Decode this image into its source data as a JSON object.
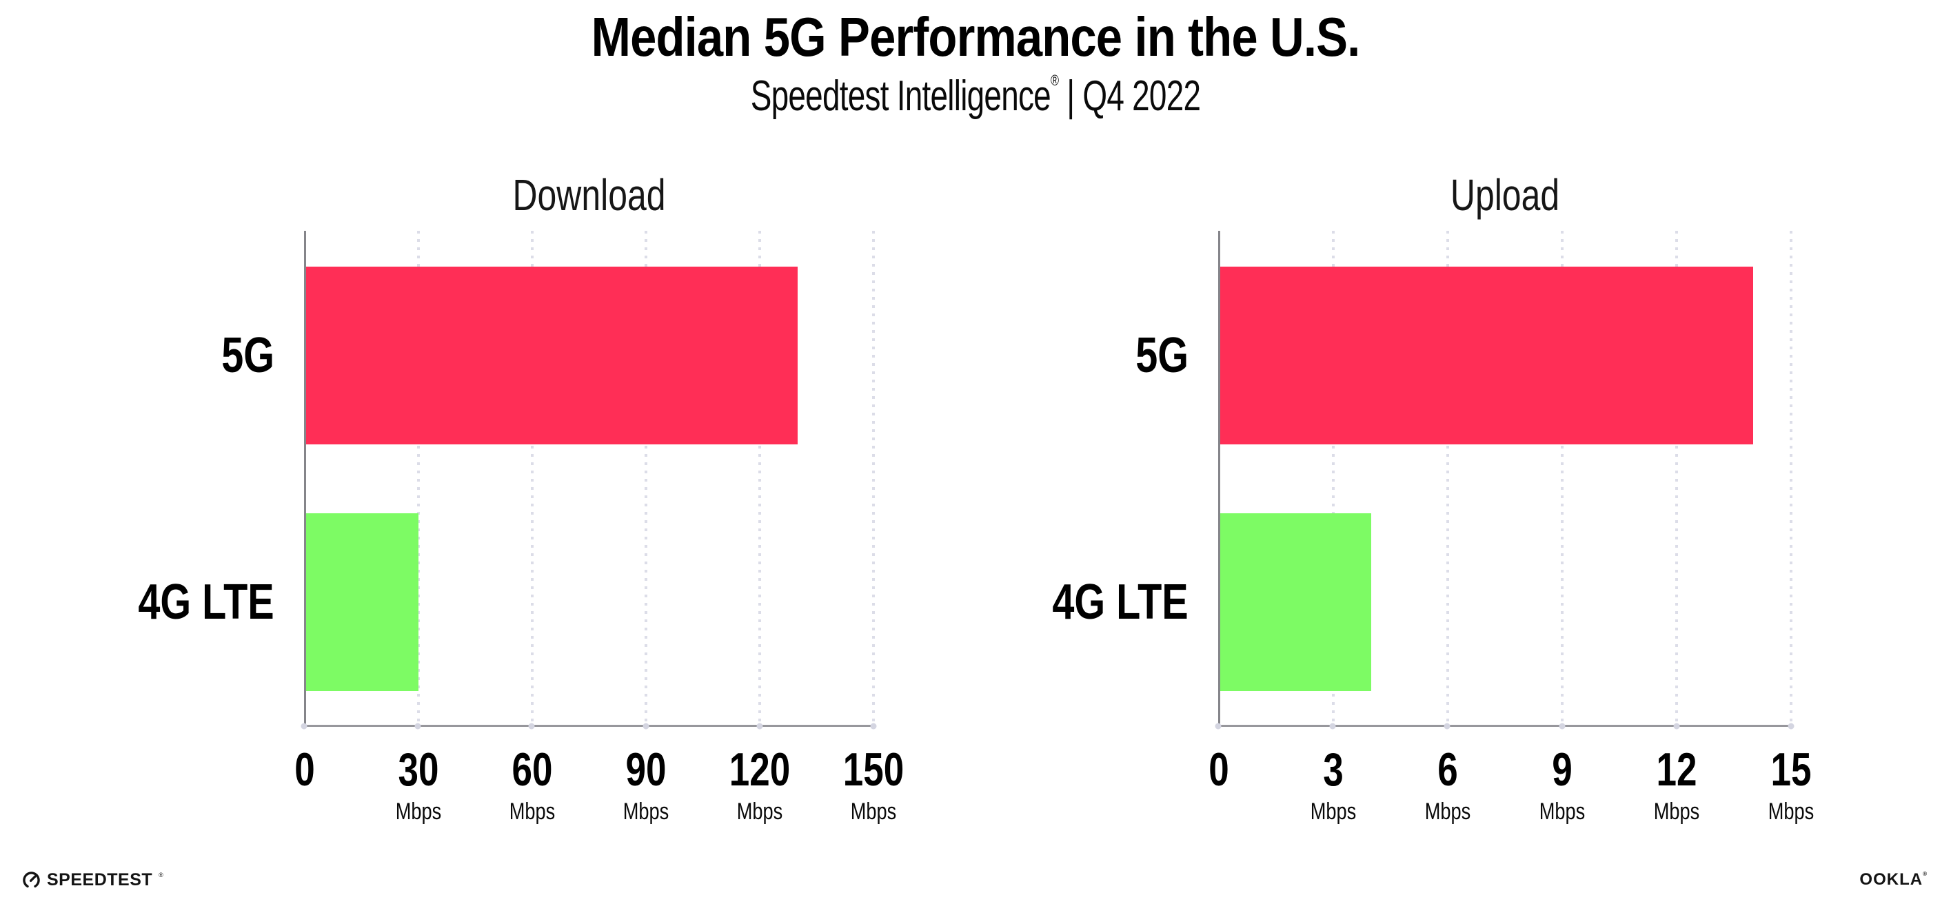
{
  "header": {
    "title": "Median 5G Performance in the U.S.",
    "subtitle_brand": "Speedtest Intelligence",
    "subtitle_reg": "®",
    "subtitle_rest": " | Q4 2022"
  },
  "chart_data": [
    {
      "type": "bar",
      "orientation": "horizontal",
      "title": "Download",
      "categories": [
        "5G",
        "4G LTE"
      ],
      "values": [
        130,
        30
      ],
      "unit": "Mbps",
      "xlabel": "",
      "ylabel": "",
      "xlim": [
        0,
        150
      ],
      "xticks": [
        0,
        30,
        60,
        90,
        120,
        150
      ],
      "bar_colors": [
        "#ff2e56",
        "#7dfb64"
      ],
      "grid": "dotted-vertical",
      "legend": "none"
    },
    {
      "type": "bar",
      "orientation": "horizontal",
      "title": "Upload",
      "categories": [
        "5G",
        "4G LTE"
      ],
      "values": [
        14,
        4
      ],
      "unit": "Mbps",
      "xlabel": "",
      "ylabel": "",
      "xlim": [
        0,
        15
      ],
      "xticks": [
        0,
        3,
        6,
        9,
        12,
        15
      ],
      "bar_colors": [
        "#ff2e56",
        "#7dfb64"
      ],
      "grid": "dotted-vertical",
      "legend": "none"
    }
  ],
  "colors": {
    "bar_5g": "#ff2e56",
    "bar_4g_lte": "#7dfb64",
    "axis_line": "#97979c",
    "grid_dots": "#dcdde8",
    "text": "#000000",
    "background": "#ffffff"
  },
  "footer": {
    "speedtest_label": "SPEEDTEST",
    "speedtest_reg": "®",
    "ookla_label": "OOKLA",
    "ookla_reg": "®"
  }
}
